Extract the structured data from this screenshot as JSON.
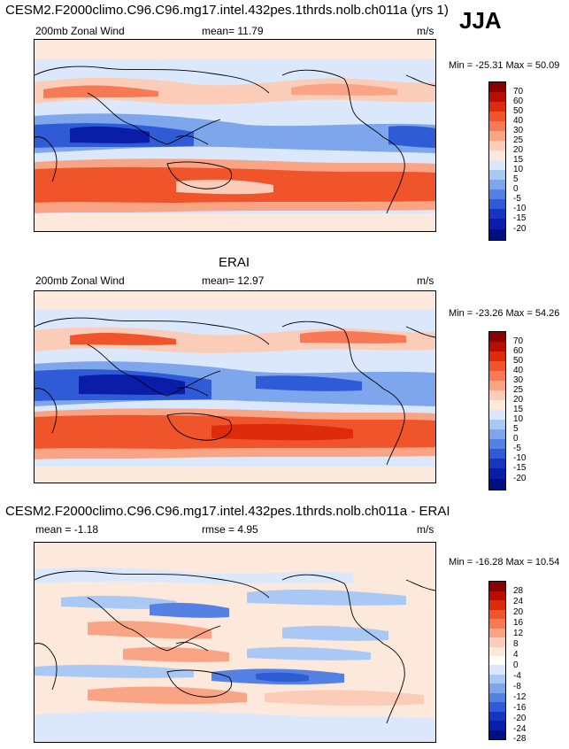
{
  "page": {
    "title": "CESM2.F2000climo.C96.C96.mg17.intel.432pes.1thrds.nolb.ch011a (yrs 1)",
    "season": "JJA"
  },
  "panels": [
    {
      "title": "",
      "left_label": "200mb Zonal Wind",
      "mid_label": "mean=  11.79",
      "units": "m/s",
      "minmax": "Min = -25.31 Max =  50.09",
      "scale": [
        "70",
        "60",
        "50",
        "40",
        "30",
        "25",
        "20",
        "15",
        "10",
        "5",
        "0",
        "-5",
        "-10",
        "-15",
        "-20"
      ]
    },
    {
      "title": "ERAI",
      "left_label": "200mb Zonal Wind",
      "mid_label": "mean=  12.97",
      "units": "m/s",
      "minmax": "Min = -23.26 Max =  54.26",
      "scale": [
        "70",
        "60",
        "50",
        "40",
        "30",
        "25",
        "20",
        "15",
        "10",
        "5",
        "0",
        "-5",
        "-10",
        "-15",
        "-20"
      ]
    },
    {
      "title": "CESM2.F2000climo.C96.C96.mg17.intel.432pes.1thrds.nolb.ch011a - ERAI",
      "left_label": "mean =  -1.18",
      "mid_label": "rmse =   4.95",
      "units": "m/s",
      "minmax": "Min = -16.28 Max =  10.54",
      "scale": [
        "28",
        "24",
        "20",
        "16",
        "12",
        "8",
        "4",
        "0",
        "-4",
        "-8",
        "-12",
        "-16",
        "-20",
        "-24",
        "-28"
      ]
    }
  ],
  "colors": {
    "wind": [
      "#8a0000",
      "#b80e00",
      "#dd2b0b",
      "#f0542a",
      "#f57a55",
      "#f9a585",
      "#fbcdb8",
      "#fde8dc",
      "#dbe8fb",
      "#a9c8f4",
      "#7ea6ec",
      "#5582e2",
      "#2f5bd6",
      "#1736bf",
      "#0a1da8",
      "#000f80"
    ],
    "diff": [
      "#8a0000",
      "#b80e00",
      "#dd2b0b",
      "#f0542a",
      "#f57a55",
      "#f9a585",
      "#fbcdb8",
      "#fde8dc",
      "#ffffff",
      "#dbe8fb",
      "#a9c8f4",
      "#7ea6ec",
      "#5582e2",
      "#2f5bd6",
      "#1736bf",
      "#0a1da8",
      "#000f80"
    ]
  }
}
